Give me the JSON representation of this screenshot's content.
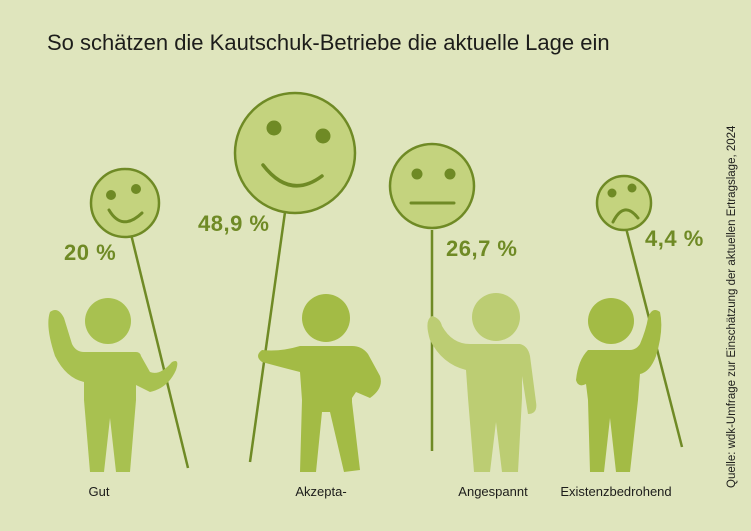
{
  "title": "So schätzen die Kautschuk-Betriebe die aktuelle Lage ein",
  "source": "Quelle: wdk-Umfrage zur Einschätzung der aktuellen Ertragslage, 2024",
  "chart_data": {
    "type": "bar",
    "title": "So schätzen die Kautschuk-Betriebe die aktuelle Lage ein",
    "categories": [
      "Gut",
      "Akzepta-",
      "Angespannt",
      "Existenzbedrohend"
    ],
    "values": [
      20,
      48.9,
      26.7,
      4.4
    ],
    "value_labels": [
      "20 %",
      "48,9 %",
      "26,7 %",
      "4,4 %"
    ],
    "unit": "%",
    "icons": [
      "smile-face-icon",
      "big-smile-face-icon",
      "neutral-face-icon",
      "frown-face-icon"
    ]
  },
  "colors": {
    "background": "#dfe5bd",
    "accent": "#6f8a25",
    "figure_dark": "#a3bb45",
    "figure_light": "#bccd73",
    "face_fill": "#c4d37e"
  }
}
